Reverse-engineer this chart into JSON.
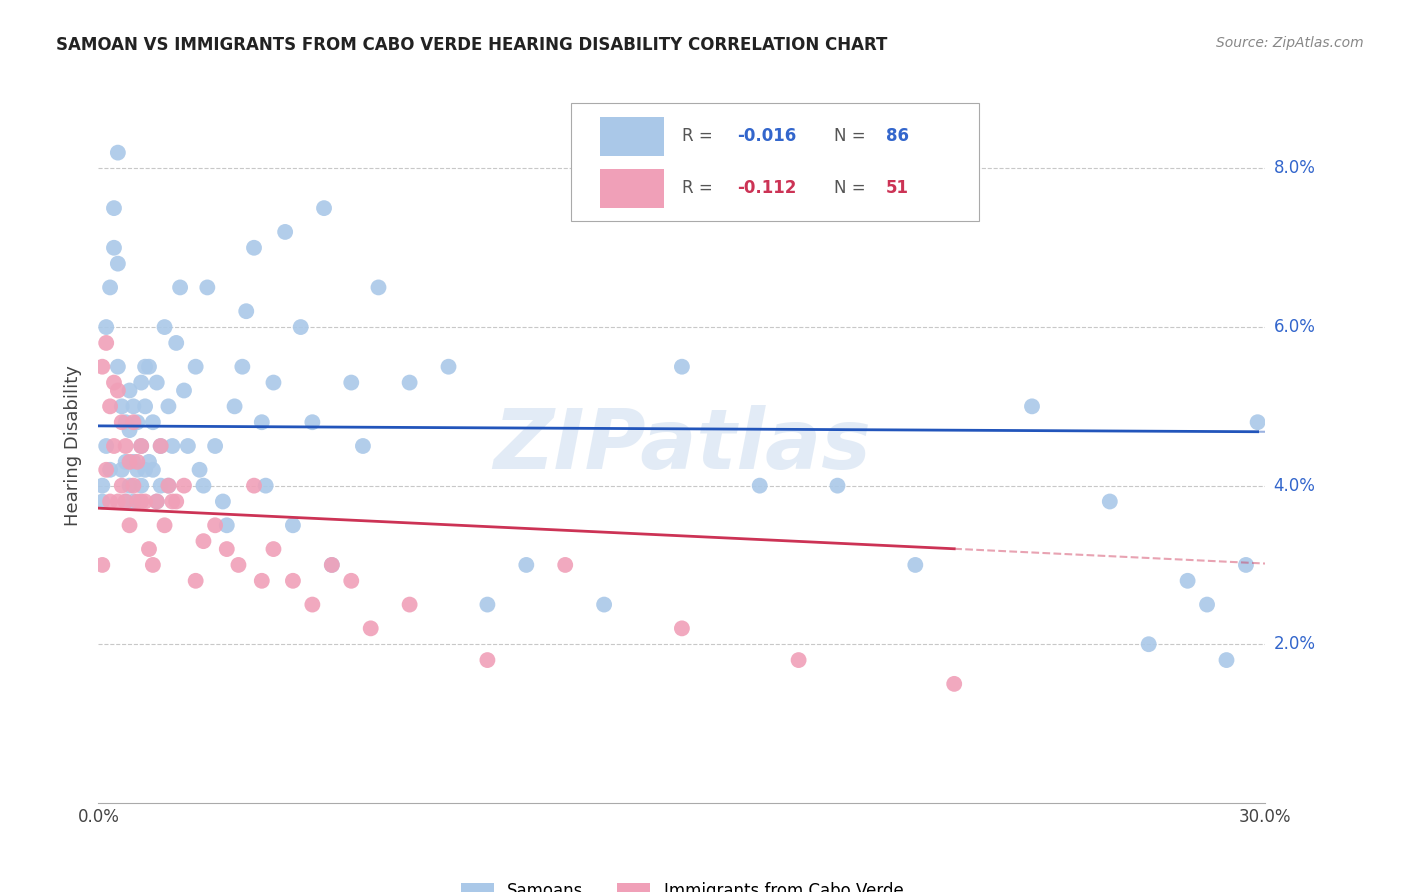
{
  "title": "SAMOAN VS IMMIGRANTS FROM CABO VERDE HEARING DISABILITY CORRELATION CHART",
  "source": "Source: ZipAtlas.com",
  "ylabel": "Hearing Disability",
  "xmin": 0.0,
  "xmax": 0.3,
  "ymin": 0.0,
  "ymax": 0.09,
  "yticks": [
    0.02,
    0.04,
    0.06,
    0.08
  ],
  "ytick_labels": [
    "2.0%",
    "4.0%",
    "6.0%",
    "8.0%"
  ],
  "xtick_labels": [
    "0.0%",
    "30.0%"
  ],
  "grid_color": "#c8c8c8",
  "background_color": "#ffffff",
  "watermark": "ZIPatlas",
  "series": [
    {
      "name": "Samoans",
      "R": -0.016,
      "N": 86,
      "color": "#aac8e8",
      "line_color": "#2255bb",
      "line_dash": "solid",
      "x": [
        0.001,
        0.001,
        0.002,
        0.002,
        0.003,
        0.003,
        0.004,
        0.004,
        0.005,
        0.005,
        0.005,
        0.006,
        0.006,
        0.007,
        0.007,
        0.007,
        0.008,
        0.008,
        0.008,
        0.009,
        0.009,
        0.009,
        0.01,
        0.01,
        0.011,
        0.011,
        0.011,
        0.012,
        0.012,
        0.012,
        0.013,
        0.013,
        0.014,
        0.014,
        0.015,
        0.015,
        0.016,
        0.016,
        0.017,
        0.018,
        0.018,
        0.019,
        0.02,
        0.021,
        0.022,
        0.023,
        0.025,
        0.026,
        0.027,
        0.028,
        0.03,
        0.032,
        0.033,
        0.035,
        0.037,
        0.038,
        0.04,
        0.042,
        0.043,
        0.045,
        0.048,
        0.05,
        0.052,
        0.055,
        0.058,
        0.06,
        0.065,
        0.068,
        0.072,
        0.08,
        0.09,
        0.1,
        0.11,
        0.13,
        0.15,
        0.17,
        0.19,
        0.21,
        0.24,
        0.26,
        0.27,
        0.28,
        0.285,
        0.29,
        0.295,
        0.298
      ],
      "y": [
        0.04,
        0.038,
        0.06,
        0.045,
        0.065,
        0.042,
        0.075,
        0.07,
        0.068,
        0.082,
        0.055,
        0.05,
        0.042,
        0.048,
        0.043,
        0.038,
        0.052,
        0.047,
        0.04,
        0.05,
        0.043,
        0.038,
        0.048,
        0.042,
        0.053,
        0.045,
        0.04,
        0.055,
        0.042,
        0.05,
        0.043,
        0.055,
        0.042,
        0.048,
        0.038,
        0.053,
        0.04,
        0.045,
        0.06,
        0.05,
        0.04,
        0.045,
        0.058,
        0.065,
        0.052,
        0.045,
        0.055,
        0.042,
        0.04,
        0.065,
        0.045,
        0.038,
        0.035,
        0.05,
        0.055,
        0.062,
        0.07,
        0.048,
        0.04,
        0.053,
        0.072,
        0.035,
        0.06,
        0.048,
        0.075,
        0.03,
        0.053,
        0.045,
        0.065,
        0.053,
        0.055,
        0.025,
        0.03,
        0.025,
        0.055,
        0.04,
        0.04,
        0.03,
        0.05,
        0.038,
        0.02,
        0.028,
        0.025,
        0.018,
        0.03,
        0.048
      ]
    },
    {
      "name": "Immigrants from Cabo Verde",
      "R": -0.112,
      "N": 51,
      "color": "#f0a0b8",
      "line_color": "#cc3355",
      "line_dash": "solid",
      "x": [
        0.001,
        0.001,
        0.002,
        0.002,
        0.003,
        0.003,
        0.004,
        0.004,
        0.005,
        0.005,
        0.006,
        0.006,
        0.007,
        0.007,
        0.008,
        0.008,
        0.009,
        0.009,
        0.01,
        0.01,
        0.011,
        0.011,
        0.012,
        0.013,
        0.014,
        0.015,
        0.016,
        0.017,
        0.018,
        0.019,
        0.02,
        0.022,
        0.025,
        0.027,
        0.03,
        0.033,
        0.036,
        0.04,
        0.042,
        0.045,
        0.05,
        0.055,
        0.06,
        0.065,
        0.07,
        0.08,
        0.1,
        0.12,
        0.15,
        0.18,
        0.22
      ],
      "y": [
        0.055,
        0.03,
        0.058,
        0.042,
        0.05,
        0.038,
        0.053,
        0.045,
        0.052,
        0.038,
        0.048,
        0.04,
        0.045,
        0.038,
        0.043,
        0.035,
        0.048,
        0.04,
        0.043,
        0.038,
        0.045,
        0.038,
        0.038,
        0.032,
        0.03,
        0.038,
        0.045,
        0.035,
        0.04,
        0.038,
        0.038,
        0.04,
        0.028,
        0.033,
        0.035,
        0.032,
        0.03,
        0.04,
        0.028,
        0.032,
        0.028,
        0.025,
        0.03,
        0.028,
        0.022,
        0.025,
        0.018,
        0.03,
        0.022,
        0.018,
        0.015
      ]
    }
  ]
}
